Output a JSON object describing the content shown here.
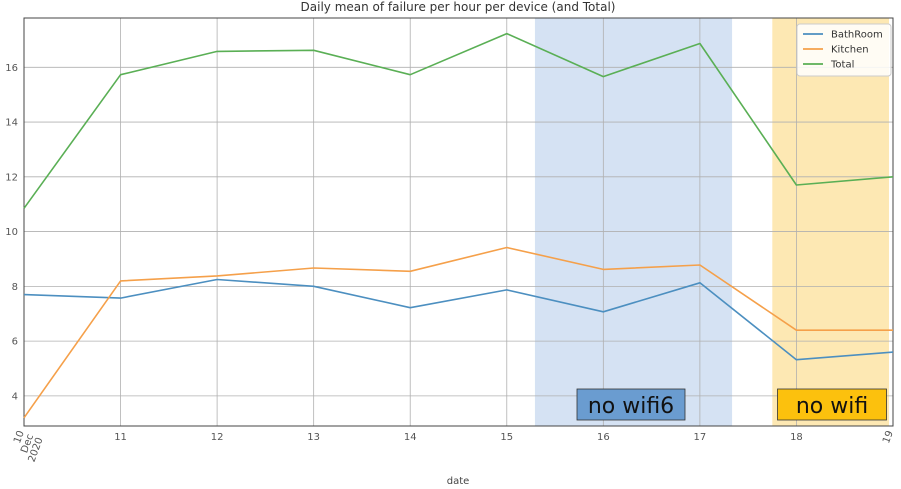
{
  "chart_data": {
    "type": "line",
    "title": "Daily mean of failure per hour per device (and Total)",
    "xlabel": "date",
    "ylabel": "",
    "x": [
      "2020-12-10",
      "2020-12-11",
      "2020-12-12",
      "2020-12-13",
      "2020-12-14",
      "2020-12-15",
      "2020-12-16",
      "2020-12-17",
      "2020-12-18",
      "2020-12-19"
    ],
    "xticks": [
      {
        "x": "2020-12-10",
        "lines": [
          "10",
          "Dec",
          "2020"
        ]
      },
      {
        "x": "2020-12-11",
        "lines": [
          "11"
        ]
      },
      {
        "x": "2020-12-12",
        "lines": [
          "12"
        ]
      },
      {
        "x": "2020-12-13",
        "lines": [
          "13"
        ]
      },
      {
        "x": "2020-12-14",
        "lines": [
          "14"
        ]
      },
      {
        "x": "2020-12-15",
        "lines": [
          "15"
        ]
      },
      {
        "x": "2020-12-16",
        "lines": [
          "16"
        ]
      },
      {
        "x": "2020-12-17",
        "lines": [
          "17"
        ]
      },
      {
        "x": "2020-12-18",
        "lines": [
          "18"
        ]
      },
      {
        "x": "2020-12-19",
        "lines": [
          "19"
        ]
      }
    ],
    "yticks": [
      4,
      6,
      8,
      10,
      12,
      14,
      16
    ],
    "xlim": [
      "2020-12-10",
      "2020-12-19"
    ],
    "ylim": [
      2.9,
      17.8
    ],
    "grid": true,
    "legend_position": "top-right",
    "series": [
      {
        "name": "BathRoom",
        "color": "#4c8fc0",
        "values": [
          7.7,
          7.57,
          8.25,
          8.0,
          7.22,
          7.87,
          7.07,
          8.13,
          5.32,
          5.6
        ]
      },
      {
        "name": "Kitchen",
        "color": "#f5a04a",
        "values": [
          3.2,
          8.2,
          8.38,
          8.67,
          8.55,
          9.42,
          8.62,
          8.78,
          6.4,
          6.4
        ]
      },
      {
        "name": "Total",
        "color": "#5aaf55",
        "values": [
          10.85,
          15.73,
          16.58,
          16.62,
          15.73,
          17.23,
          15.66,
          16.87,
          11.7,
          12.0
        ]
      }
    ],
    "annotations": [
      {
        "label": "no wifi6",
        "from": "2020-12-15T07:00",
        "to": "2020-12-17T08:00",
        "region_color": "#d5e2f3",
        "box_color": "#6a9cd0"
      },
      {
        "label": "no wifi",
        "from": "2020-12-17T18:00",
        "to": "2020-12-18T23:00",
        "region_color": "#fde8b3",
        "box_color": "#fcc10d"
      }
    ]
  }
}
